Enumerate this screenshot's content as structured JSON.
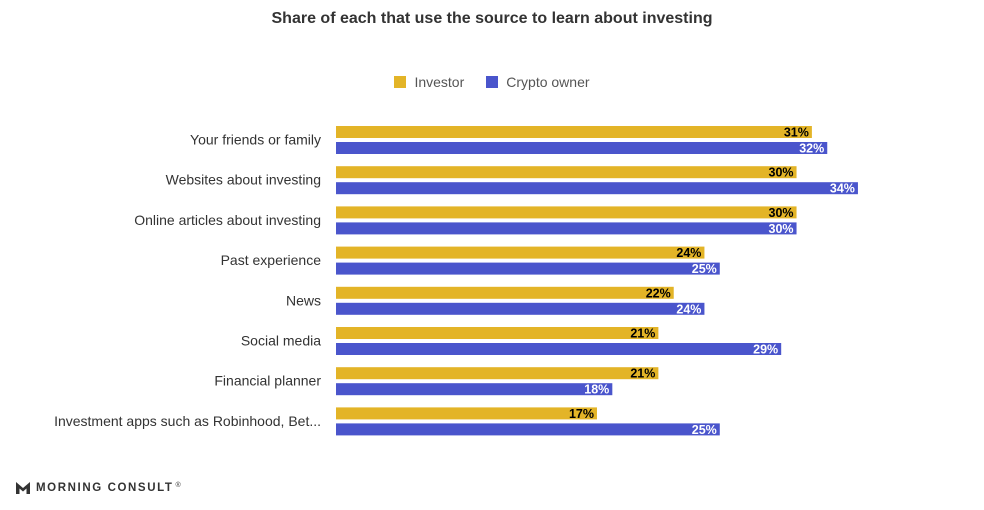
{
  "chart_data": {
    "type": "bar",
    "orientation": "horizontal",
    "title": "Share of each that use the source to learn about investing",
    "categories": [
      "Your friends or family",
      "Websites about investing",
      "Online articles about investing",
      "Past experience",
      "News",
      "Social media",
      "Financial planner",
      "Investment apps such as Robinhood, Bet..."
    ],
    "series": [
      {
        "name": "Investor",
        "color": "#E3B427",
        "label_color": "#000000",
        "values": [
          31,
          30,
          30,
          24,
          22,
          21,
          21,
          17
        ],
        "labels": [
          "31%",
          "30%",
          "30%",
          "24%",
          "22%",
          "21%",
          "21%",
          "17%"
        ]
      },
      {
        "name": "Crypto owner",
        "color": "#4A55CC",
        "label_color": "#ffffff",
        "values": [
          32,
          34,
          30,
          25,
          24,
          29,
          18,
          25
        ],
        "labels": [
          "32%",
          "34%",
          "30%",
          "25%",
          "24%",
          "29%",
          "18%",
          "25%"
        ]
      }
    ],
    "xlim": [
      0,
      37
    ],
    "grid": false,
    "legend_position": "top-center",
    "xlabel": "",
    "ylabel": ""
  },
  "footer": {
    "brand": "MORNING CONSULT",
    "trademark": "®",
    "logo_icon": "morning-consult-m-icon"
  }
}
